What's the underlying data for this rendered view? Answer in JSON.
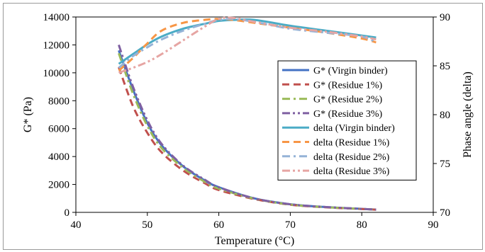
{
  "chart_data": {
    "type": "line",
    "xlabel": "Temperature (°C)",
    "ylabel": "G* (Pa)",
    "y2label": "Phase angle (delta)",
    "xlim": [
      40,
      90
    ],
    "ylim": [
      0,
      14000
    ],
    "y2lim": [
      70,
      90
    ],
    "x_ticks": [
      40,
      50,
      60,
      70,
      80,
      90
    ],
    "y_ticks": [
      0,
      2000,
      4000,
      6000,
      8000,
      10000,
      12000,
      14000
    ],
    "y2_ticks": [
      70,
      75,
      80,
      85,
      90
    ],
    "grid": false,
    "legend_position": "right",
    "series": [
      {
        "name": "G* (Virgin binder)",
        "axis": "left",
        "color": "#4472c4",
        "dash": "solid",
        "x": [
          46,
          48,
          50,
          52,
          55,
          58,
          60,
          65,
          70,
          75,
          80,
          82
        ],
        "y": [
          11600,
          8800,
          6400,
          4800,
          3300,
          2300,
          1800,
          1000,
          580,
          380,
          250,
          200
        ]
      },
      {
        "name": "G* (Residue 1%)",
        "axis": "left",
        "color": "#c0504d",
        "dash": "dash",
        "x": [
          46,
          48,
          50,
          52,
          55,
          58,
          60,
          65,
          70,
          75,
          80,
          82
        ],
        "y": [
          10400,
          7600,
          5700,
          4300,
          3000,
          2100,
          1600,
          950,
          550,
          360,
          240,
          190
        ]
      },
      {
        "name": "G* (Residue 2%)",
        "axis": "left",
        "color": "#9bbb59",
        "dash": "dashdot",
        "x": [
          46,
          48,
          50,
          52,
          55,
          58,
          60,
          65,
          70,
          75,
          80,
          82
        ],
        "y": [
          11400,
          8500,
          6200,
          4600,
          3200,
          2200,
          1700,
          980,
          560,
          370,
          245,
          195
        ]
      },
      {
        "name": "G* (Residue 3%)",
        "axis": "left",
        "color": "#7f60a2",
        "dash": "dashdotdot",
        "x": [
          46,
          48,
          50,
          52,
          55,
          58,
          60,
          65,
          70,
          75,
          80,
          82
        ],
        "y": [
          12000,
          9000,
          6600,
          4900,
          3350,
          2350,
          1800,
          1000,
          580,
          380,
          250,
          200
        ]
      },
      {
        "name": "delta (Virgin binder)",
        "axis": "right",
        "color": "#4bacc6",
        "dash": "solid",
        "x": [
          46,
          48,
          50,
          52,
          55,
          58,
          60,
          62,
          65,
          70,
          75,
          80,
          82
        ],
        "y": [
          85.2,
          86.2,
          87.2,
          88.0,
          88.8,
          89.3,
          89.6,
          89.7,
          89.7,
          89.1,
          88.6,
          88.1,
          87.9
        ]
      },
      {
        "name": "delta (Residue 1%)",
        "axis": "right",
        "color": "#f79646",
        "dash": "dash",
        "x": [
          46,
          48,
          50,
          52,
          55,
          58,
          60,
          62,
          65,
          70,
          75,
          80,
          82
        ],
        "y": [
          84.5,
          85.8,
          87.3,
          88.6,
          89.4,
          89.7,
          89.8,
          89.7,
          89.4,
          88.9,
          88.4,
          87.8,
          87.4
        ]
      },
      {
        "name": "delta (Residue 2%)",
        "axis": "right",
        "color": "#95b3d7",
        "dash": "dashdot",
        "x": [
          46,
          48,
          50,
          52,
          55,
          58,
          60,
          62,
          65,
          70,
          75,
          80,
          82
        ],
        "y": [
          84.8,
          86.0,
          86.9,
          87.7,
          88.6,
          89.3,
          89.7,
          89.8,
          89.5,
          88.8,
          88.4,
          88.0,
          87.4
        ]
      },
      {
        "name": "delta (Residue 3%)",
        "axis": "right",
        "color": "#e6a5a3",
        "dash": "dashdotdot",
        "x": [
          46,
          48,
          50,
          52,
          55,
          58,
          60,
          62,
          65,
          70,
          75,
          80,
          82
        ],
        "y": [
          84.3,
          84.8,
          85.4,
          86.2,
          87.6,
          89.0,
          89.8,
          89.9,
          89.5,
          88.9,
          88.5,
          88.0,
          87.7
        ]
      }
    ]
  }
}
